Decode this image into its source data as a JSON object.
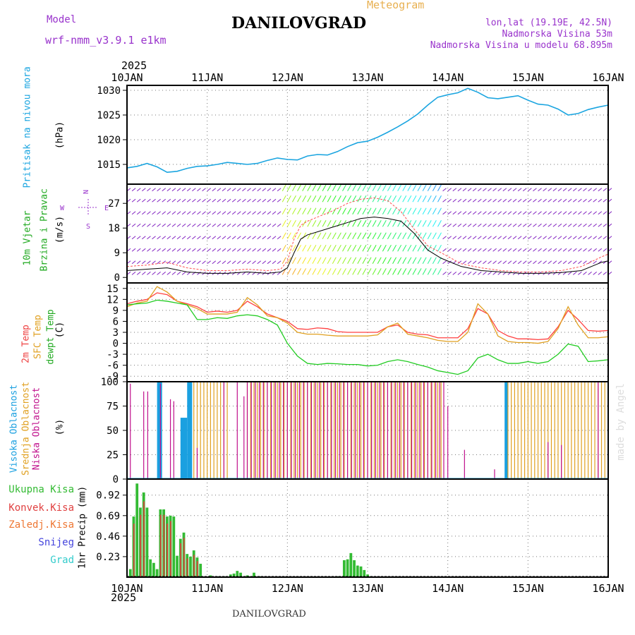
{
  "header": {
    "model_label": "Model",
    "model_name": "wrf-nmm_v3.9.1 e1km",
    "title": "DANILOVGRAD",
    "meteogram": "Meteogram",
    "lonlat": "lon,lat (19.19E, 42.5N)",
    "altitude": "Nadmorska Visina 53m",
    "model_altitude": "Nadmorska Visina u modelu 68.895m",
    "year_top": "2025",
    "year_bottom": "2025",
    "footer": "DANILOVGRAD",
    "watermark": "made by Angel"
  },
  "colors": {
    "pressure": "#1ba5e0",
    "wind_speed": "#000000",
    "gust": "#ff5050",
    "temp2m": "#ff4040",
    "sfc": "#e0a020",
    "dew": "#22cc22",
    "high_cloud": "#1aa0e0",
    "mid_cloud": "#e0a020",
    "low_cloud": "#c0108c",
    "total_precip": "#33bb33",
    "conv_precip": "#e04040",
    "wind_barb": "#8020c0",
    "frame": "#000000",
    "grid": "#777777",
    "axis_label_purple": "#9933cc"
  },
  "chart_data": [
    {
      "type": "line",
      "name": "pressure",
      "ylabel_left": "Pritisak na nivou mora",
      "ylabel_unit": "(hPa)",
      "x_ticks": [
        "10JAN",
        "11JAN",
        "12JAN",
        "13JAN",
        "14JAN",
        "15JAN",
        "16JAN"
      ],
      "xlim_hours": [
        0,
        144
      ],
      "ylim": [
        1011,
        1031
      ],
      "yticks": [
        1015,
        1020,
        1025,
        1030
      ],
      "x": [
        0,
        3,
        6,
        9,
        12,
        15,
        18,
        21,
        24,
        27,
        30,
        33,
        36,
        39,
        42,
        45,
        48,
        51,
        54,
        57,
        60,
        63,
        66,
        69,
        72,
        75,
        78,
        81,
        84,
        87,
        90,
        93,
        96,
        99,
        102,
        105,
        108,
        111,
        114,
        117,
        120,
        123,
        126,
        129,
        132,
        135,
        138,
        141,
        144
      ],
      "values": [
        1014.3,
        1014.6,
        1015.2,
        1014.5,
        1013.4,
        1013.6,
        1014.2,
        1014.6,
        1014.7,
        1015.0,
        1015.4,
        1015.2,
        1015.0,
        1015.2,
        1015.8,
        1016.3,
        1016.0,
        1015.9,
        1016.7,
        1017.0,
        1016.9,
        1017.6,
        1018.6,
        1019.4,
        1019.7,
        1020.5,
        1021.5,
        1022.6,
        1023.8,
        1025.2,
        1027.0,
        1028.6,
        1029.1,
        1029.5,
        1030.4,
        1029.6,
        1028.5,
        1028.3,
        1028.6,
        1028.9,
        1028.0,
        1027.2,
        1027.0,
        1026.2,
        1025.0,
        1025.3,
        1026.1,
        1026.6,
        1027.0
      ]
    },
    {
      "type": "line",
      "name": "wind",
      "ylabel_left": "10m Vjetar",
      "ylabel_left2": "Brzina i Pravac",
      "ylabel_unit": "(m/s)",
      "compass": "N E S W",
      "ylim": [
        -2,
        34
      ],
      "yticks": [
        0,
        9,
        18,
        27
      ],
      "x": [
        0,
        6,
        12,
        18,
        24,
        30,
        36,
        42,
        46,
        48,
        50,
        52,
        54,
        58,
        62,
        66,
        70,
        74,
        78,
        82,
        86,
        90,
        94,
        100,
        106,
        112,
        118,
        124,
        130,
        136,
        142,
        144
      ],
      "series": [
        {
          "name": "speed",
          "values": [
            2.5,
            3.0,
            3.5,
            2.0,
            1.5,
            1.5,
            2.0,
            1.5,
            2.0,
            3.5,
            9.0,
            14.0,
            15.5,
            17.0,
            18.5,
            20.0,
            21.5,
            22.0,
            21.5,
            20.5,
            16.0,
            10.0,
            7.0,
            4.0,
            2.5,
            2.0,
            1.5,
            1.5,
            1.8,
            2.5,
            5.5,
            6.0
          ]
        },
        {
          "name": "gust",
          "values": [
            4.0,
            4.5,
            5.5,
            3.5,
            2.5,
            2.5,
            3.0,
            2.5,
            3.0,
            6.0,
            14.0,
            19.0,
            20.5,
            22.5,
            24.5,
            27.0,
            28.5,
            29.0,
            28.0,
            24.0,
            17.5,
            11.5,
            9.0,
            5.0,
            3.5,
            2.5,
            2.0,
            2.0,
            2.5,
            4.0,
            7.5,
            8.5
          ]
        }
      ],
      "barb_rows": [
        1,
        5,
        9.5,
        14,
        18.5,
        23,
        27.5,
        31.5
      ]
    },
    {
      "type": "line",
      "name": "temperature",
      "ylabel_left": "2m Temp",
      "ylabel_left2": "SFC Temp",
      "ylabel_left3": "dewpt Temp",
      "ylabel_unit": "(C)",
      "ylim": [
        -10.5,
        16.5
      ],
      "yticks": [
        -9,
        -6,
        -3,
        0,
        3,
        6,
        9,
        12,
        15
      ],
      "x": [
        0,
        3,
        6,
        9,
        12,
        15,
        18,
        21,
        24,
        27,
        30,
        33,
        36,
        39,
        42,
        45,
        48,
        51,
        54,
        57,
        60,
        63,
        66,
        69,
        72,
        75,
        78,
        81,
        84,
        87,
        90,
        93,
        96,
        99,
        102,
        105,
        108,
        111,
        114,
        117,
        120,
        123,
        126,
        129,
        132,
        135,
        138,
        141,
        144
      ],
      "series": [
        {
          "name": "t2m",
          "values": [
            10.8,
            11.5,
            12.0,
            13.8,
            13.3,
            11.5,
            10.8,
            10.0,
            8.5,
            8.8,
            8.5,
            9.0,
            11.5,
            10.0,
            8.0,
            7.0,
            6.0,
            4.0,
            3.8,
            4.2,
            4.0,
            3.2,
            3.0,
            3.0,
            3.0,
            3.0,
            4.5,
            5.0,
            3.0,
            2.5,
            2.3,
            1.5,
            1.5,
            1.5,
            4.0,
            9.5,
            8.0,
            3.5,
            2.0,
            1.2,
            1.2,
            1.0,
            1.2,
            4.5,
            9.0,
            6.5,
            3.5,
            3.3,
            3.5
          ]
        },
        {
          "name": "sfc",
          "values": [
            10.0,
            11.0,
            11.5,
            15.5,
            14.0,
            11.5,
            10.5,
            9.5,
            8.0,
            8.0,
            8.0,
            8.5,
            12.5,
            10.5,
            7.5,
            7.0,
            5.5,
            3.0,
            2.5,
            2.5,
            2.2,
            2.0,
            2.0,
            2.0,
            2.0,
            2.3,
            4.5,
            5.5,
            2.5,
            2.0,
            1.5,
            0.8,
            0.5,
            0.5,
            3.0,
            10.8,
            8.0,
            2.0,
            0.5,
            0.2,
            0.2,
            0.0,
            0.5,
            4.0,
            10.0,
            5.0,
            1.5,
            1.5,
            1.8
          ]
        },
        {
          "name": "dew",
          "values": [
            10.5,
            10.8,
            11.0,
            11.8,
            11.5,
            11.0,
            10.5,
            6.5,
            6.5,
            7.0,
            6.8,
            7.5,
            7.8,
            7.5,
            6.5,
            5.0,
            0.0,
            -3.5,
            -5.5,
            -5.8,
            -5.5,
            -5.6,
            -5.8,
            -5.8,
            -6.2,
            -6.0,
            -5.0,
            -4.5,
            -5.0,
            -5.8,
            -6.5,
            -7.5,
            -8.0,
            -8.5,
            -7.5,
            -4.0,
            -3.0,
            -4.5,
            -5.5,
            -5.5,
            -5.0,
            -5.5,
            -5.0,
            -3.0,
            -0.2,
            -0.8,
            -5.0,
            -4.8,
            -4.5
          ]
        }
      ]
    },
    {
      "type": "bar",
      "name": "cloud",
      "ylabel_left": "Visoka Oblacnost",
      "ylabel_left2": "Srednja Oblacnost",
      "ylabel_left3": "Niska Oblacnost",
      "ylabel_unit": "(%)",
      "ylim": [
        0,
        100
      ],
      "yticks": [
        0,
        25,
        50,
        75,
        100
      ],
      "series": [
        {
          "name": "high",
          "segments": [
            [
              9,
              10.5,
              100
            ],
            [
              16,
              18,
              63
            ],
            [
              18,
              19.5,
              100
            ],
            [
              113,
              114,
              100
            ]
          ]
        },
        {
          "name": "mid",
          "segments": [
            [
              20,
              31,
              100
            ],
            [
              36,
              95,
              100
            ],
            [
              114,
              144,
              100
            ]
          ]
        },
        {
          "name": "low",
          "segments": [
            [
              1,
              2,
              98
            ],
            [
              5,
              7,
              90
            ],
            [
              10,
              11,
              98
            ],
            [
              13,
              14,
              82
            ],
            [
              14,
              15,
              80
            ],
            [
              21,
              22,
              32
            ],
            [
              29,
              30,
              100
            ],
            [
              33,
              34,
              100
            ],
            [
              35,
              36,
              85
            ],
            [
              36,
              95,
              100
            ],
            [
              96,
              97,
              75
            ],
            [
              101,
              102,
              30
            ],
            [
              110,
              111,
              10
            ],
            [
              126,
              127,
              38
            ],
            [
              130,
              131,
              35
            ],
            [
              141,
              142,
              100
            ]
          ]
        }
      ]
    },
    {
      "type": "bar",
      "name": "precip",
      "legend": [
        "Ukupna Kisa",
        "Konvek.Kisa",
        "Zaledj.Kisa",
        "Snijeg",
        "Grad"
      ],
      "ylabel_unit": "1hr Precip (mm)",
      "ylim": [
        0,
        1.1
      ],
      "yticks": [
        0.23,
        0.46,
        0.69,
        0.92
      ],
      "x": [
        0,
        1,
        2,
        3,
        4,
        5,
        6,
        7,
        8,
        9,
        10,
        11,
        12,
        13,
        14,
        15,
        16,
        17,
        18,
        19,
        20,
        21,
        22,
        23,
        24,
        25,
        26,
        27,
        28,
        29,
        30,
        31,
        32,
        33,
        34,
        35,
        36,
        37,
        38,
        39,
        40,
        41,
        42,
        43,
        44,
        45,
        46,
        47,
        48,
        49,
        50,
        51,
        52,
        53,
        54,
        55,
        56,
        57,
        58,
        59,
        60,
        61,
        62,
        63,
        64,
        65,
        66,
        67,
        68,
        69,
        70,
        71,
        72,
        73,
        74,
        75,
        76
      ],
      "series": [
        {
          "name": "total",
          "values": [
            0.09,
            0.68,
            1.05,
            0.78,
            0.95,
            0.78,
            0.2,
            0.16,
            0.09,
            0.76,
            0.76,
            0.68,
            0.69,
            0.68,
            0.24,
            0.43,
            0.5,
            0.26,
            0.23,
            0.3,
            0.22,
            0.15,
            0.0,
            0.0,
            0.02,
            0.0,
            0.01,
            0.0,
            0.01,
            0.0,
            0.03,
            0.04,
            0.07,
            0.05,
            0.0,
            0.02,
            0.01,
            0.05,
            0.0,
            0.01,
            0.0,
            0.0,
            0.0,
            0.0,
            0.0,
            0.0,
            0.0,
            0.0,
            0.0,
            0.0,
            0.0,
            0.0,
            0.0,
            0.0,
            0.0,
            0.0,
            0.0,
            0.0,
            0.0,
            0.0,
            0.0,
            0.0,
            0.01,
            0.0,
            0.19,
            0.2,
            0.27,
            0.19,
            0.13,
            0.12,
            0.08,
            0.03,
            0.01,
            0.0,
            0.0,
            0.0,
            0.0
          ]
        },
        {
          "name": "convective",
          "values": [
            0.0,
            0.6,
            0.0,
            0.7,
            0.85,
            0.0,
            0.0,
            0.0,
            0.0,
            0.7,
            0.7,
            0.6,
            0.63,
            0.0,
            0.0,
            0.38,
            0.44,
            0.21,
            0.0,
            0.25,
            0.18,
            0.0,
            0.0,
            0.0,
            0.0,
            0.0,
            0.0,
            0.0,
            0.0,
            0.0,
            0.0,
            0.0,
            0.0,
            0.0,
            0.0,
            0.0,
            0.0,
            0.0,
            0.0,
            0.0,
            0.0,
            0.0,
            0.0,
            0.0,
            0.0,
            0.0,
            0.0,
            0.0,
            0.0,
            0.0,
            0.0,
            0.0,
            0.0,
            0.0,
            0.0,
            0.0,
            0.0,
            0.0,
            0.0,
            0.0,
            0.0,
            0.0,
            0.0,
            0.0,
            0.0,
            0.0,
            0.0,
            0.0,
            0.0,
            0.0,
            0.0,
            0.0,
            0.0,
            0.0,
            0.0,
            0.0,
            0.0
          ]
        }
      ]
    }
  ]
}
